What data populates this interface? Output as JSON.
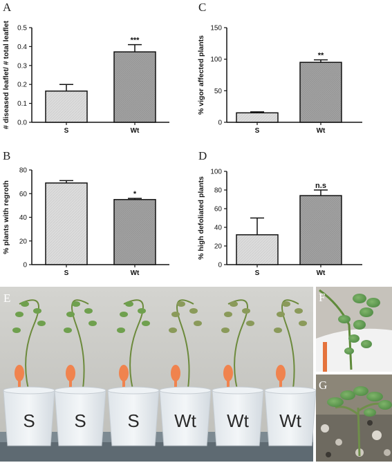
{
  "chart_data": [
    {
      "panel": "A",
      "type": "bar",
      "categories": [
        "S",
        "Wt"
      ],
      "values": [
        0.165,
        0.372
      ],
      "errors": [
        0.035,
        0.038
      ],
      "significance": [
        "",
        "***"
      ],
      "ylabel": "# diseased leaflet/ # total leaflet",
      "ylim": [
        0,
        0.5
      ],
      "yticks": [
        "0.0",
        "0.1",
        "0.2",
        "0.3",
        "0.4",
        "0.5"
      ]
    },
    {
      "panel": "C",
      "type": "bar",
      "categories": [
        "S",
        "Wt"
      ],
      "values": [
        15,
        95
      ],
      "errors": [
        1.5,
        4
      ],
      "significance": [
        "",
        "**"
      ],
      "ylabel": "% vigor affected plants",
      "ylim": [
        0,
        150
      ],
      "yticks": [
        "0",
        "50",
        "100",
        "150"
      ]
    },
    {
      "panel": "B",
      "type": "bar",
      "categories": [
        "S",
        "Wt"
      ],
      "values": [
        69,
        55
      ],
      "errors": [
        2,
        1
      ],
      "significance": [
        "",
        "*"
      ],
      "ylabel": "% plants with regroth",
      "ylim": [
        0,
        80
      ],
      "yticks": [
        "0",
        "20",
        "40",
        "60",
        "80"
      ]
    },
    {
      "panel": "D",
      "type": "bar",
      "categories": [
        "S",
        "Wt"
      ],
      "values": [
        32,
        74
      ],
      "errors": [
        18,
        6
      ],
      "significance": [
        "",
        "n.s"
      ],
      "ylabel": "% high defoliated plants",
      "ylim": [
        0,
        100
      ],
      "yticks": [
        "0",
        "20",
        "40",
        "60",
        "80",
        "100"
      ]
    }
  ],
  "photos": {
    "E": {
      "letter": "E",
      "cups": [
        "S",
        "S",
        "S",
        "Wt",
        "Wt",
        "Wt"
      ]
    },
    "F": {
      "letter": "F"
    },
    "G": {
      "letter": "G"
    }
  },
  "colors": {
    "bar_s": "#dcdcdc",
    "bar_wt": "#9e9e9e",
    "axis": "#111111",
    "photo_bg": "#c9c9c5"
  }
}
